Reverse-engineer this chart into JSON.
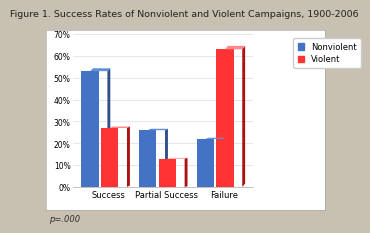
{
  "title": "Figure 1. Success Rates of Nonviolent and Violent Campaigns, 1900-2006",
  "categories": [
    "Success",
    "Partial Success",
    "Failure"
  ],
  "nonviolent": [
    53,
    26,
    22
  ],
  "violent": [
    27,
    13,
    63
  ],
  "nonviolent_color": "#4472C4",
  "nonviolent_dark": "#2E4F8C",
  "violent_color": "#FF3333",
  "violent_dark": "#AA1111",
  "ylim": [
    0,
    70
  ],
  "yticks": [
    0,
    10,
    20,
    30,
    40,
    50,
    60,
    70
  ],
  "ytick_labels": [
    "0%",
    "10%",
    "20%",
    "30%",
    "40%",
    "50%",
    "60%",
    "70%"
  ],
  "legend_labels": [
    "Nonviolent",
    "Violent"
  ],
  "footnote": "p=.000",
  "bg_outer": "#C8C0B0",
  "bg_inner": "#F5F5F5",
  "title_fontsize": 6.8,
  "axis_fontsize": 6.0,
  "tick_fontsize": 5.5,
  "legend_fontsize": 6.0,
  "footnote_fontsize": 6.0
}
